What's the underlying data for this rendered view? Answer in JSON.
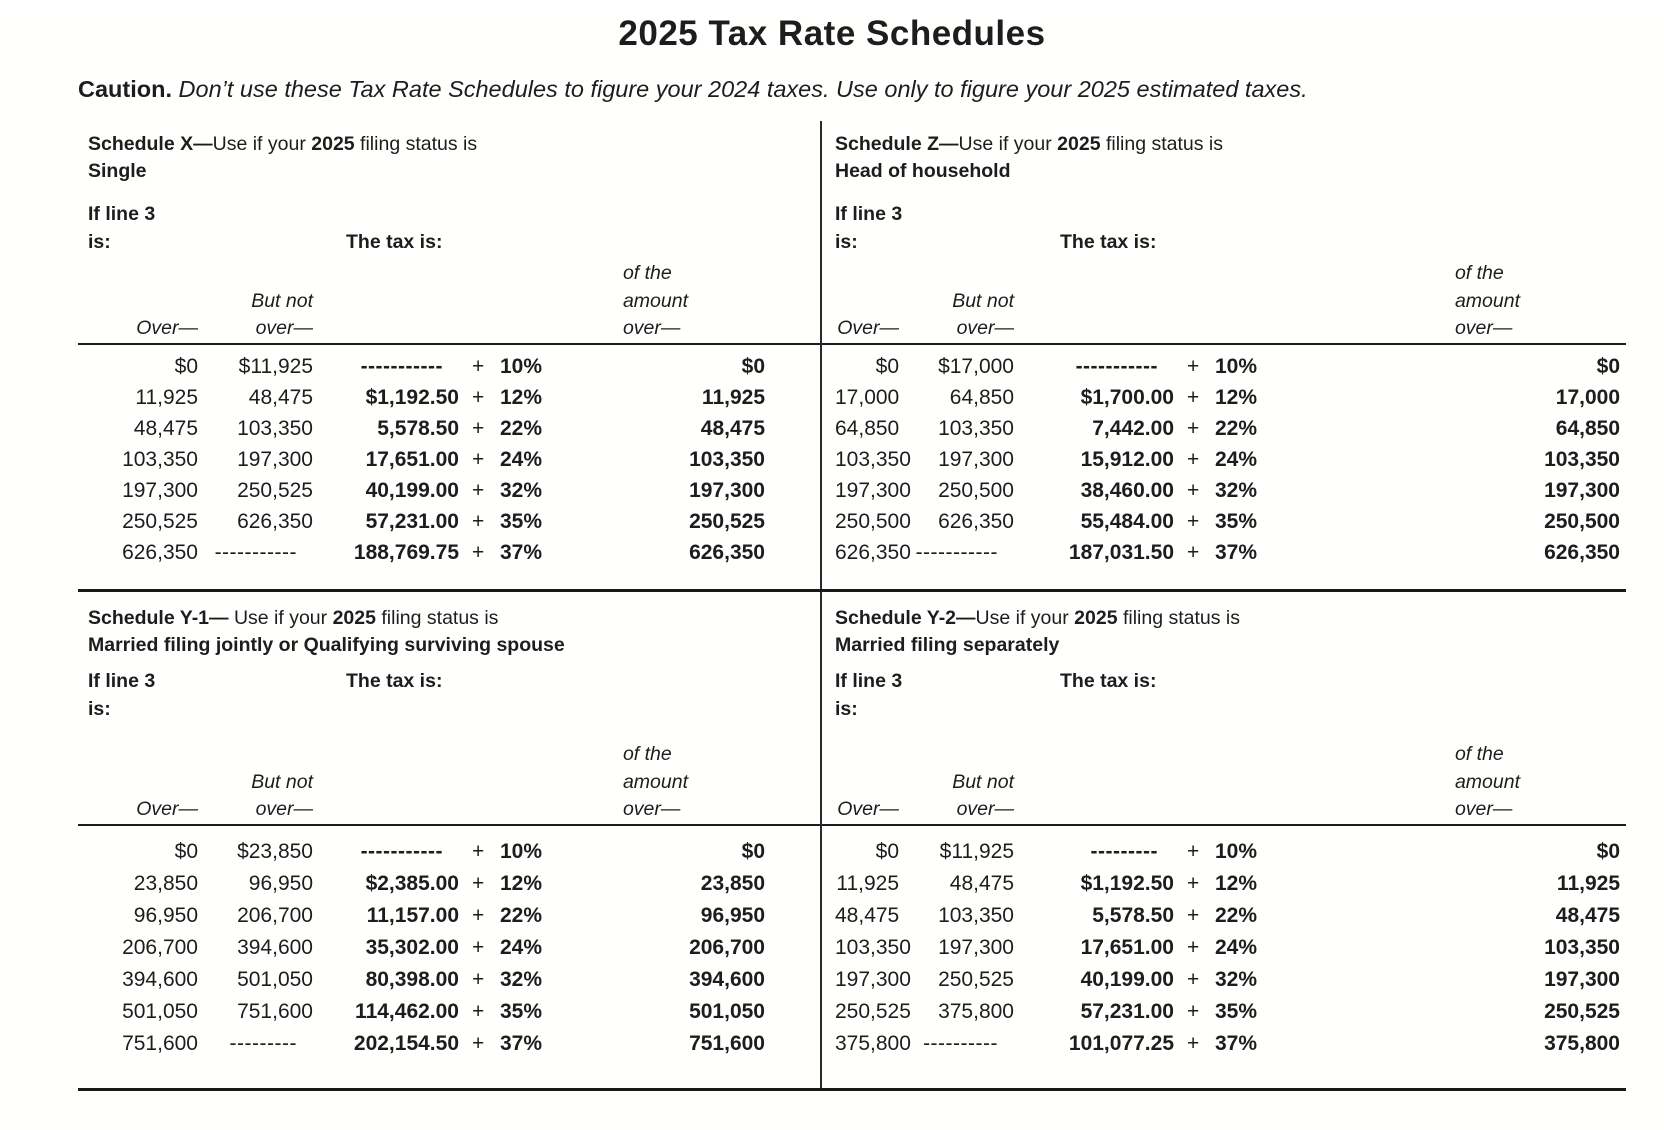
{
  "page": {
    "title": "2025 Tax Rate Schedules",
    "caution_label": "Caution.",
    "caution_text": " Don’t use these Tax Rate Schedules to figure your 2024 taxes. Use only to figure your 2025 estimated taxes."
  },
  "labels": {
    "if_line_1": "If line 3",
    "if_line_2": "is:",
    "tax_is": "The tax is:",
    "over": "Over—",
    "butnot1": "But not",
    "butnot2": "over—",
    "amt1": "of the",
    "amt2": "amount",
    "amt3": "over—"
  },
  "schedules": [
    {
      "header": {
        "prefix": "Schedule X—",
        "use": "Use if your ",
        "year": "2025",
        "suffix": " filing status is",
        "status": "Single"
      },
      "rows": [
        {
          "over": "$0",
          "butnot": "$11,925",
          "base": "-----------",
          "plus": "+",
          "rate": "10%",
          "excess": "$0"
        },
        {
          "over": "11,925",
          "butnot": "48,475",
          "base": "$1,192.50",
          "plus": "+",
          "rate": "12%",
          "excess": "11,925"
        },
        {
          "over": "48,475",
          "butnot": "103,350",
          "base": "5,578.50",
          "plus": "+",
          "rate": "22%",
          "excess": "48,475"
        },
        {
          "over": "103,350",
          "butnot": "197,300",
          "base": "17,651.00",
          "plus": "+",
          "rate": "24%",
          "excess": "103,350"
        },
        {
          "over": "197,300",
          "butnot": "250,525",
          "base": "40,199.00",
          "plus": "+",
          "rate": "32%",
          "excess": "197,300"
        },
        {
          "over": "250,525",
          "butnot": "626,350",
          "base": "57,231.00",
          "plus": "+",
          "rate": "35%",
          "excess": "250,525"
        },
        {
          "over": "626,350",
          "butnot": "-----------",
          "base": "188,769.75",
          "plus": "+",
          "rate": "37%",
          "excess": "626,350"
        }
      ]
    },
    {
      "header": {
        "prefix": "Schedule Z—",
        "use": "Use if your ",
        "year": "2025",
        "suffix": " filing status is",
        "status": "Head of household"
      },
      "rows": [
        {
          "over": "$0",
          "butnot": "$17,000",
          "base": "-----------",
          "plus": "+",
          "rate": "10%",
          "excess": "$0"
        },
        {
          "over": "17,000",
          "butnot": "64,850",
          "base": "$1,700.00",
          "plus": "+",
          "rate": "12%",
          "excess": "17,000"
        },
        {
          "over": "64,850",
          "butnot": "103,350",
          "base": "7,442.00",
          "plus": "+",
          "rate": "22%",
          "excess": "64,850"
        },
        {
          "over": "103,350",
          "butnot": "197,300",
          "base": "15,912.00",
          "plus": "+",
          "rate": "24%",
          "excess": "103,350"
        },
        {
          "over": "197,300",
          "butnot": "250,500",
          "base": "38,460.00",
          "plus": "+",
          "rate": "32%",
          "excess": "197,300"
        },
        {
          "over": "250,500",
          "butnot": "626,350",
          "base": "55,484.00",
          "plus": "+",
          "rate": "35%",
          "excess": "250,500"
        },
        {
          "over": "626,350",
          "butnot": "-----------",
          "base": "187,031.50",
          "plus": "+",
          "rate": "37%",
          "excess": "626,350"
        }
      ]
    },
    {
      "header": {
        "prefix": "Schedule Y-1— ",
        "use": "Use if your ",
        "year": "2025",
        "suffix": " filing status is",
        "status": "Married filing jointly or Qualifying surviving spouse"
      },
      "rows": [
        {
          "over": "$0",
          "butnot": "$23,850",
          "base": "-----------",
          "plus": "+",
          "rate": "10%",
          "excess": "$0"
        },
        {
          "over": "23,850",
          "butnot": "96,950",
          "base": "$2,385.00",
          "plus": "+",
          "rate": "12%",
          "excess": "23,850"
        },
        {
          "over": "96,950",
          "butnot": "206,700",
          "base": "11,157.00",
          "plus": "+",
          "rate": "22%",
          "excess": "96,950"
        },
        {
          "over": "206,700",
          "butnot": "394,600",
          "base": "35,302.00",
          "plus": "+",
          "rate": "24%",
          "excess": "206,700"
        },
        {
          "over": "394,600",
          "butnot": "501,050",
          "base": "80,398.00",
          "plus": "+",
          "rate": "32%",
          "excess": "394,600"
        },
        {
          "over": "501,050",
          "butnot": "751,600",
          "base": "114,462.00",
          "plus": "+",
          "rate": "35%",
          "excess": "501,050"
        },
        {
          "over": "751,600",
          "butnot": "---------",
          "base": "202,154.50",
          "plus": "+",
          "rate": "37%",
          "excess": "751,600"
        }
      ]
    },
    {
      "header": {
        "prefix": "Schedule Y-2—",
        "use": "Use if your ",
        "year": "2025",
        "suffix": " filing status is",
        "status": "Married filing separately"
      },
      "rows": [
        {
          "over": "$0",
          "butnot": "$11,925",
          "base": "---------",
          "plus": "+",
          "rate": "10%",
          "excess": "$0"
        },
        {
          "over": "11,925",
          "butnot": "48,475",
          "base": "$1,192.50",
          "plus": "+",
          "rate": "12%",
          "excess": "11,925"
        },
        {
          "over": "48,475",
          "butnot": "103,350",
          "base": "5,578.50",
          "plus": "+",
          "rate": "22%",
          "excess": "48,475"
        },
        {
          "over": "103,350",
          "butnot": "197,300",
          "base": "17,651.00",
          "plus": "+",
          "rate": "24%",
          "excess": "103,350"
        },
        {
          "over": "197,300",
          "butnot": "250,525",
          "base": "40,199.00",
          "plus": "+",
          "rate": "32%",
          "excess": "197,300"
        },
        {
          "over": "250,525",
          "butnot": "375,800",
          "base": "57,231.00",
          "plus": "+",
          "rate": "35%",
          "excess": "250,525"
        },
        {
          "over": "375,800",
          "butnot": "----------",
          "base": "101,077.25",
          "plus": "+",
          "rate": "37%",
          "excess": "375,800"
        }
      ]
    }
  ]
}
